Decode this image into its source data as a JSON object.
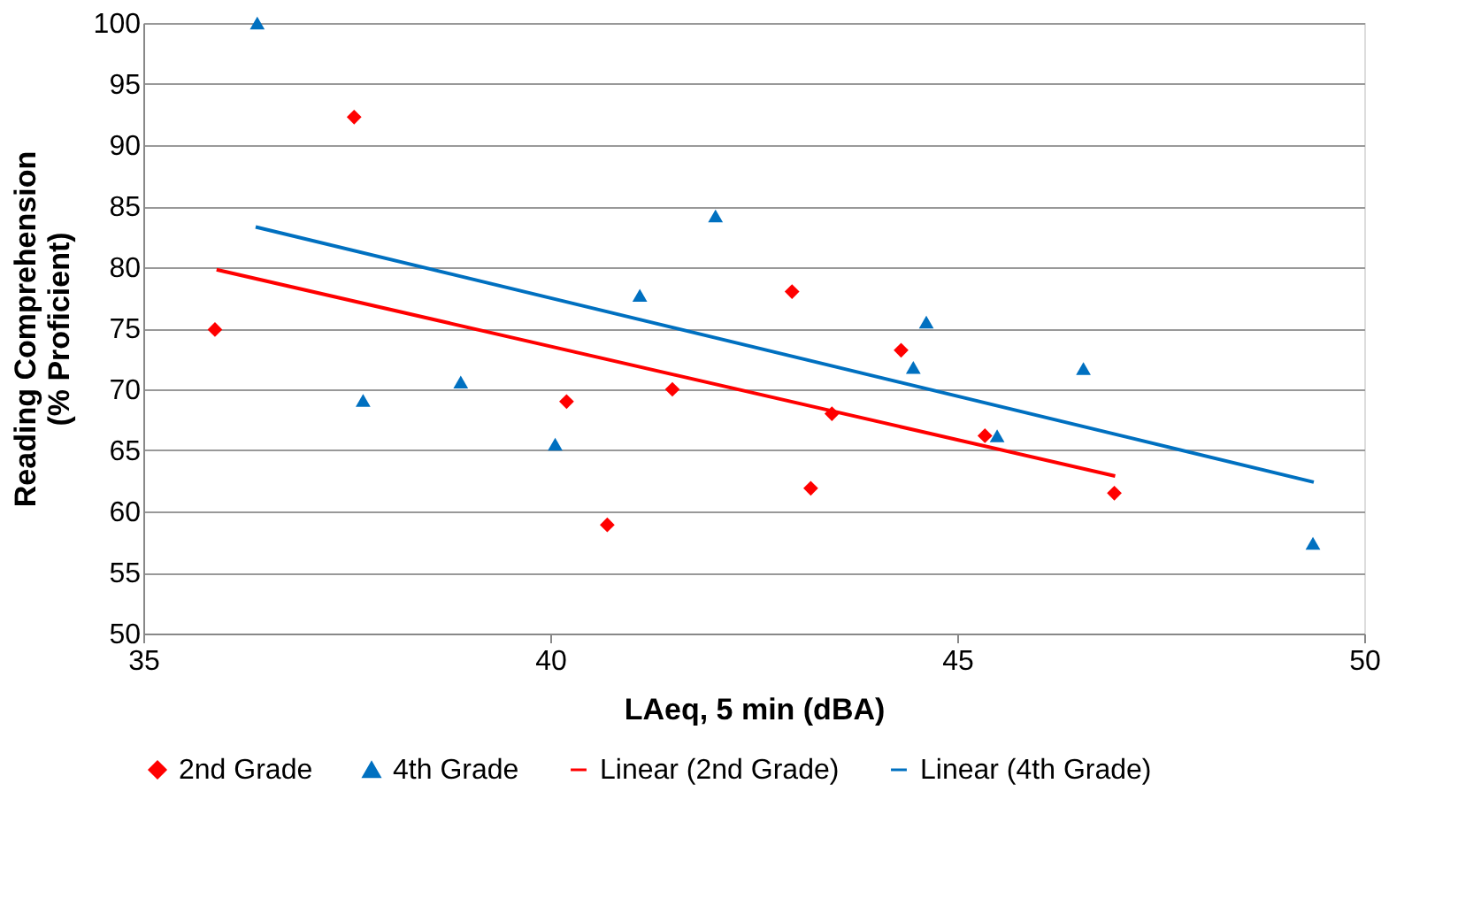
{
  "chart_data": {
    "type": "scatter",
    "xlabel": "LAeq, 5 min (dBA)",
    "ylabel": "Reading Comprehension\n(% Proficient)",
    "xlim": [
      35,
      50
    ],
    "xticks": [
      35,
      40,
      45,
      50
    ],
    "ylim": [
      50,
      100
    ],
    "yticks": [
      50,
      55,
      60,
      65,
      70,
      75,
      80,
      85,
      90,
      95,
      100
    ],
    "grid": "y",
    "legend": "bottom",
    "series": [
      {
        "name": "2nd Grade",
        "type": "scatter",
        "marker": "diamond",
        "color": "#ff0000",
        "x": [
          35.88,
          37.59,
          40.2,
          40.7,
          41.5,
          42.97,
          43.2,
          43.46,
          44.31,
          45.34,
          46.93
        ],
        "values": [
          74.9,
          92.3,
          69.0,
          58.9,
          70.0,
          78.0,
          61.9,
          68.0,
          73.2,
          66.2,
          61.5
        ]
      },
      {
        "name": "4th Grade",
        "type": "scatter",
        "marker": "triangle",
        "color": "#0070c0",
        "x": [
          36.4,
          37.7,
          38.9,
          40.06,
          41.1,
          42.03,
          44.46,
          44.62,
          45.49,
          46.55,
          49.37
        ],
        "values": [
          100.0,
          69.1,
          70.6,
          65.5,
          77.7,
          84.2,
          71.8,
          75.5,
          66.2,
          71.7,
          57.4
        ]
      },
      {
        "name": "Linear (2nd Grade)",
        "type": "line",
        "color": "#ff0000",
        "x": [
          35.9,
          46.94
        ],
        "values": [
          79.8,
          62.9
        ]
      },
      {
        "name": "Linear (4th Grade)",
        "type": "line",
        "color": "#0070c0",
        "x": [
          36.38,
          49.38
        ],
        "values": [
          83.3,
          62.4
        ]
      }
    ]
  }
}
